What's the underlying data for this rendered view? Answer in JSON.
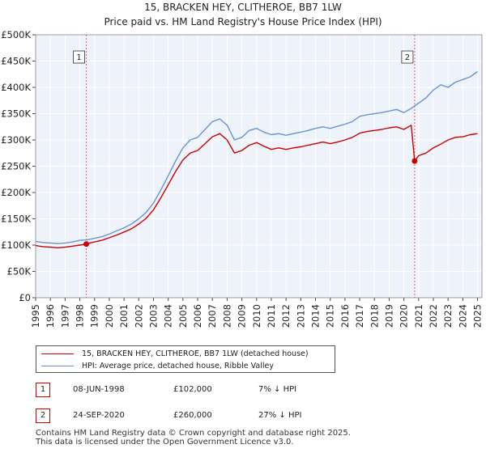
{
  "title": {
    "line1": "15, BRACKEN HEY, CLITHEROE, BB7 1LW",
    "line2": "Price paid vs. HM Land Registry's House Price Index (HPI)"
  },
  "colors": {
    "property": "#cc0000",
    "hpi": "#6a93d4",
    "grid": "#d9d9d9",
    "plot_bg": "#eef2fa",
    "marker_line": "#e06666"
  },
  "legend": {
    "property_label": "15, BRACKEN HEY, CLITHEROE, BB7 1LW (detached house)",
    "hpi_label": "HPI: Average price, detached house, Ribble Valley"
  },
  "transactions": [
    {
      "num": "1",
      "date": "08-JUN-1998",
      "price": "£102,000",
      "hpi": "7% ↓ HPI"
    },
    {
      "num": "2",
      "date": "24-SEP-2020",
      "price": "£260,000",
      "hpi": "27% ↓ HPI"
    }
  ],
  "footer": {
    "line1": "Contains HM Land Registry data © Crown copyright and database right 2025.",
    "line2": "This data is licensed under the Open Government Licence v3.0."
  },
  "chart_data": {
    "type": "line",
    "xlim": [
      1995,
      2025.3
    ],
    "ylim": [
      0,
      500000
    ],
    "y_ticks": [
      0,
      50000,
      100000,
      150000,
      200000,
      250000,
      300000,
      350000,
      400000,
      450000,
      500000
    ],
    "y_tick_labels": [
      "£0",
      "£50K",
      "£100K",
      "£150K",
      "£200K",
      "£250K",
      "£300K",
      "£350K",
      "£400K",
      "£450K",
      "£500K"
    ],
    "x_ticks": [
      1995,
      1996,
      1997,
      1998,
      1999,
      2000,
      2001,
      2002,
      2003,
      2004,
      2005,
      2006,
      2007,
      2008,
      2009,
      2010,
      2011,
      2012,
      2013,
      2014,
      2015,
      2016,
      2017,
      2018,
      2019,
      2020,
      2021,
      2022,
      2023,
      2024,
      2025
    ],
    "x_tick_labels": [
      "1995",
      "1996",
      "1997",
      "1998",
      "1999",
      "2000",
      "2001",
      "2002",
      "2003",
      "2004",
      "2005",
      "2006",
      "2007",
      "2008",
      "2009",
      "2010",
      "2011",
      "2012",
      "2013",
      "2014",
      "2015",
      "2016",
      "2017",
      "2018",
      "2019",
      "2020",
      "2021",
      "2022",
      "2023",
      "2024",
      "2025"
    ],
    "grid": true,
    "series": [
      {
        "name": "HPI: Average price, detached house, Ribble Valley",
        "x": [
          1995,
          1995.5,
          1996,
          1996.5,
          1997,
          1997.5,
          1998,
          1998.5,
          1999,
          1999.5,
          2000,
          2000.5,
          2001,
          2001.5,
          2002,
          2002.5,
          2003,
          2003.5,
          2004,
          2004.5,
          2005,
          2005.5,
          2006,
          2006.5,
          2007,
          2007.5,
          2008,
          2008.5,
          2009,
          2009.5,
          2010,
          2010.5,
          2011,
          2011.5,
          2012,
          2012.5,
          2013,
          2013.5,
          2014,
          2014.5,
          2015,
          2015.5,
          2016,
          2016.5,
          2017,
          2017.5,
          2018,
          2018.5,
          2019,
          2019.5,
          2020,
          2020.5,
          2021,
          2021.5,
          2022,
          2022.5,
          2023,
          2023.5,
          2024,
          2024.5,
          2025
        ],
        "values": [
          107000,
          105000,
          104000,
          103000,
          104000,
          106000,
          109000,
          110000,
          113000,
          116000,
          121000,
          127000,
          133000,
          140000,
          150000,
          162000,
          180000,
          205000,
          232000,
          260000,
          285000,
          300000,
          305000,
          320000,
          335000,
          340000,
          328000,
          300000,
          305000,
          318000,
          322000,
          315000,
          310000,
          312000,
          309000,
          312000,
          315000,
          318000,
          322000,
          325000,
          322000,
          326000,
          330000,
          335000,
          345000,
          348000,
          350000,
          352000,
          355000,
          358000,
          352000,
          360000,
          370000,
          380000,
          395000,
          405000,
          400000,
          410000,
          415000,
          420000,
          430000
        ]
      },
      {
        "name": "15, BRACKEN HEY, CLITHEROE, BB7 1LW (detached house)",
        "x": [
          1995,
          1995.5,
          1996,
          1996.5,
          1997,
          1997.5,
          1998,
          1998.44,
          1998.5,
          1999,
          1999.5,
          2000,
          2000.5,
          2001,
          2001.5,
          2002,
          2002.5,
          2003,
          2003.5,
          2004,
          2004.5,
          2005,
          2005.5,
          2006,
          2006.5,
          2007,
          2007.5,
          2008,
          2008.5,
          2009,
          2009.5,
          2010,
          2010.5,
          2011,
          2011.5,
          2012,
          2012.5,
          2013,
          2013.5,
          2014,
          2014.5,
          2015,
          2015.5,
          2016,
          2016.5,
          2017,
          2017.5,
          2018,
          2018.5,
          2019,
          2019.5,
          2020,
          2020.5,
          2020.73,
          2021,
          2021.5,
          2022,
          2022.5,
          2023,
          2023.5,
          2024,
          2024.5,
          2025
        ],
        "values": [
          99000,
          97000,
          96000,
          95000,
          96000,
          98000,
          100000,
          102000,
          103000,
          106000,
          109000,
          114000,
          119000,
          125000,
          131000,
          140000,
          151000,
          167000,
          190000,
          215000,
          240000,
          262000,
          275000,
          280000,
          293000,
          306000,
          312000,
          300000,
          275000,
          280000,
          290000,
          295000,
          288000,
          282000,
          285000,
          282000,
          285000,
          287000,
          290000,
          293000,
          296000,
          293000,
          296000,
          300000,
          305000,
          313000,
          316000,
          318000,
          320000,
          323000,
          325000,
          320000,
          328000,
          260000,
          270000,
          275000,
          285000,
          292000,
          300000,
          305000,
          306000,
          310000,
          312000
        ]
      }
    ],
    "annotations": [
      {
        "label": "1",
        "x": 1998.44,
        "y": 102000
      },
      {
        "label": "2",
        "x": 2020.73,
        "y": 260000
      }
    ]
  }
}
